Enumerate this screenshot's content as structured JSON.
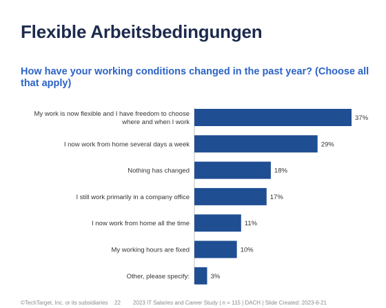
{
  "slide": {
    "title": "Flexible Arbeitsbedingungen",
    "question": "How have your working conditions changed in the past year?  (Choose all that apply)"
  },
  "chart_data": {
    "type": "bar",
    "orientation": "horizontal",
    "categories": [
      [
        "My work is now flexible and I have freedom to choose",
        "where and when I work"
      ],
      [
        "I now work from home several days a week"
      ],
      [
        "Nothing has changed"
      ],
      [
        "I still work primarily in a company office"
      ],
      [
        "I now work from home all the time"
      ],
      [
        "My working hours are fixed"
      ],
      [
        "Other, please specify:"
      ]
    ],
    "values": [
      37,
      29,
      18,
      17,
      11,
      10,
      3
    ],
    "value_suffix": "%",
    "xlim": [
      0,
      37
    ],
    "bar_color": "#1f4e93",
    "grid": false,
    "legend": "none"
  },
  "footer": {
    "copyright": "©TechTarget, Inc. or its subsidiaries",
    "page": "22",
    "study": "2023 IT Salaries and Career Study | n = 115 | DACH | Slide Created: 2023-6-21"
  }
}
